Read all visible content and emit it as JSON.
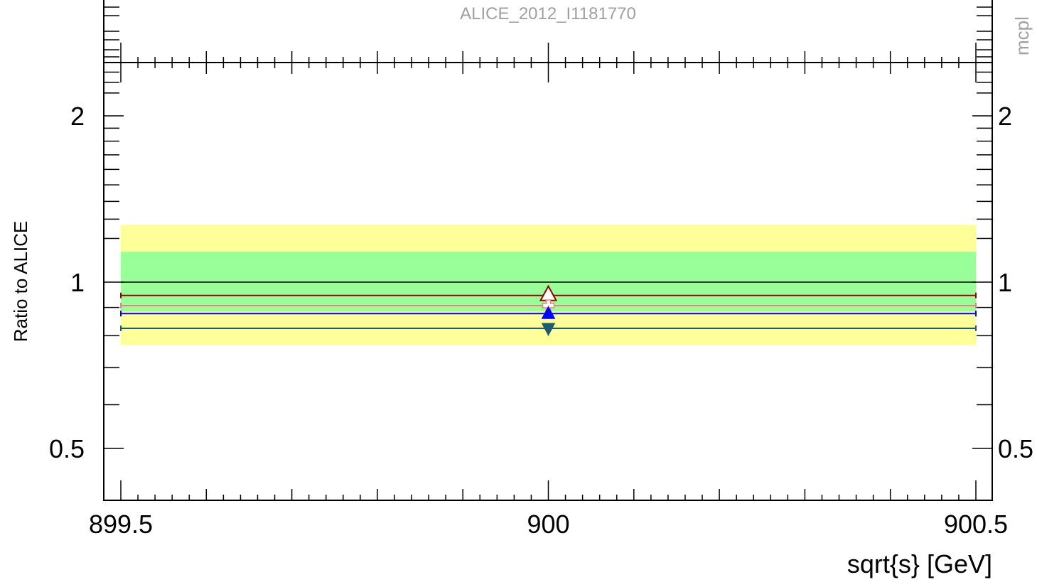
{
  "header": {
    "analysis_id": "ALICE_2012_I1181770",
    "side_tag": "mcpl"
  },
  "chart_data": {
    "type": "scatter",
    "title": "",
    "xlabel": "sqrt{s} [GeV]",
    "ylabel": "Ratio to ALICE",
    "xlim": [
      899.5,
      900.5
    ],
    "ylim": [
      0.4,
      2.5
    ],
    "y_scale": "log",
    "grid": false,
    "x_tick_labels": [
      {
        "value": 899.5,
        "text": "899.5"
      },
      {
        "value": 900,
        "text": "900"
      },
      {
        "value": 900.5,
        "text": "900.5"
      }
    ],
    "y_tick_labels": [
      {
        "value": 0.5,
        "text": "0.5"
      },
      {
        "value": 1,
        "text": "1"
      },
      {
        "value": 2,
        "text": "2"
      }
    ],
    "reference_line": 1.0,
    "bands": [
      {
        "name": "outer",
        "ymin": 0.77,
        "ymax": 1.27,
        "color": "#ffff99"
      },
      {
        "name": "inner",
        "ymin": 0.885,
        "ymax": 1.135,
        "color": "#99ff99"
      }
    ],
    "series": [
      {
        "x": 900,
        "y": 0.946,
        "color": "#990000",
        "marker": "triangle-up-open",
        "style": "solid"
      },
      {
        "x": 900,
        "y": 0.907,
        "color": "#f08080",
        "marker": "cross-open",
        "style": "solid"
      },
      {
        "x": 900,
        "y": 0.877,
        "color": "#0000ff",
        "marker": "triangle-up-filled",
        "style": "solid"
      },
      {
        "x": 900,
        "y": 0.825,
        "color": "#1f5b6e",
        "marker": "triangle-down-filled",
        "style": "solid"
      }
    ]
  }
}
